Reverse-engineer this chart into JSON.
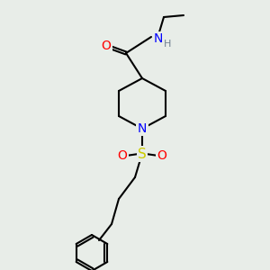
{
  "bg_color": "#e8ede8",
  "bond_color": "#000000",
  "bond_width": 1.5,
  "atom_colors": {
    "O": "#FF0000",
    "N": "#0000FF",
    "S": "#CCCC00",
    "H": "#708090",
    "C": "#000000"
  },
  "font_size": 9,
  "fig_size": [
    3.0,
    3.0
  ],
  "dpi": 100
}
